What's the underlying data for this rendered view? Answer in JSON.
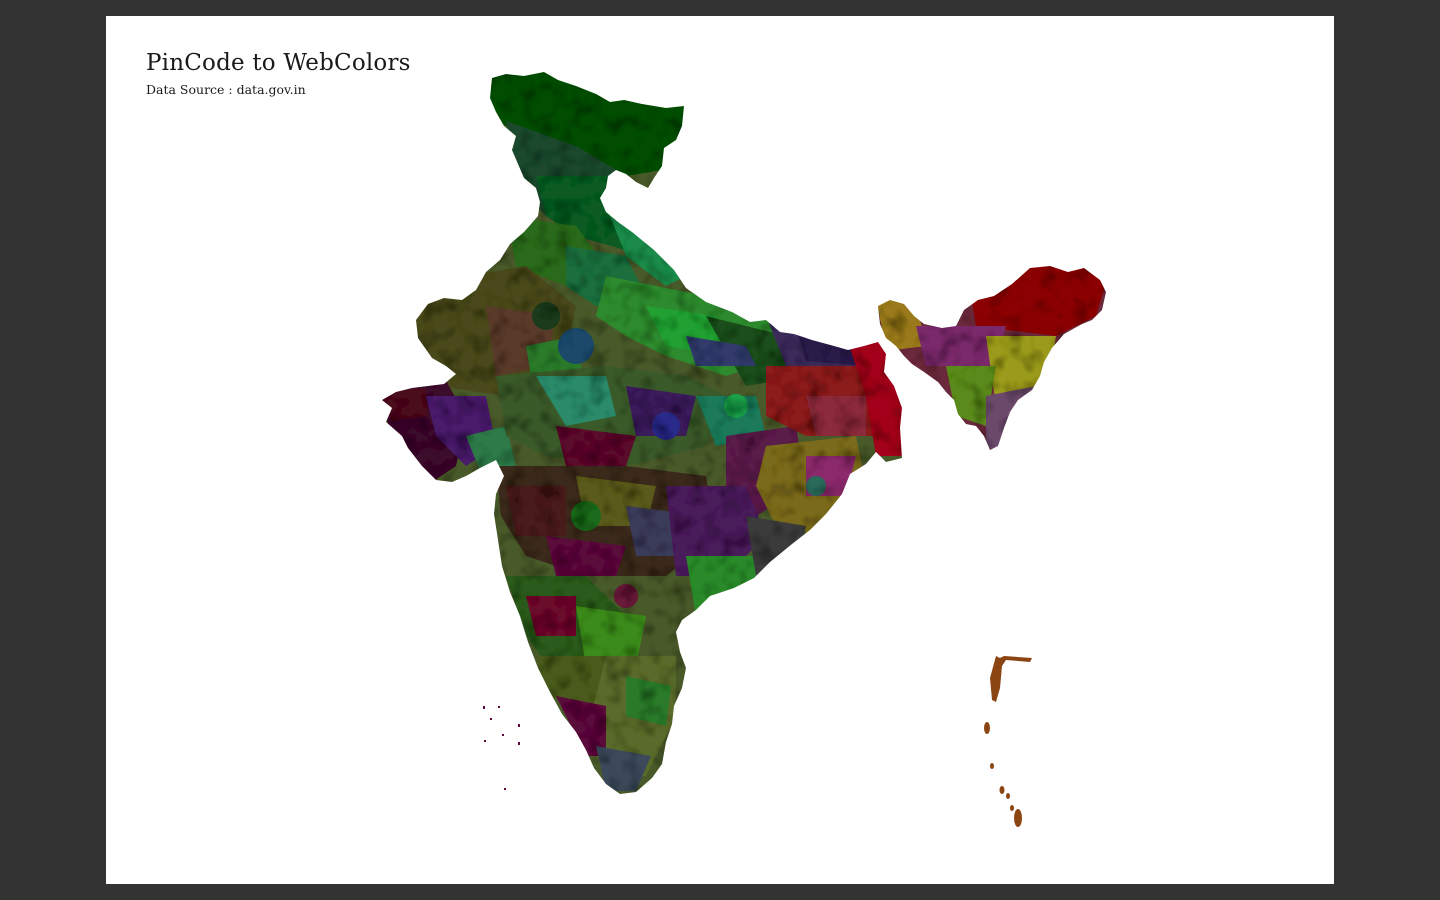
{
  "window": {
    "background": "#333333",
    "page_color": "#ffffff"
  },
  "map": {
    "title": "PinCode to WebColors",
    "subtitle": "Data Source : data.gov.in",
    "island_color": "#8b4513"
  }
}
